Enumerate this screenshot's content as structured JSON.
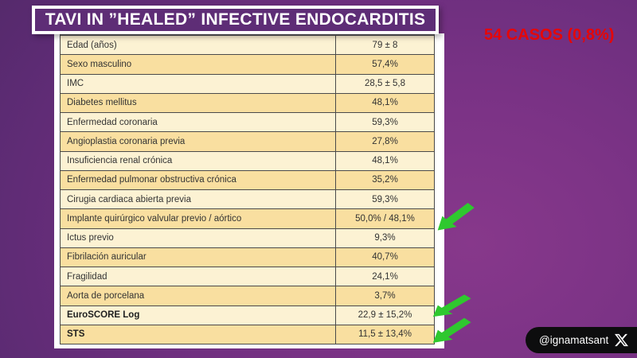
{
  "slide": {
    "title": "TAVI IN ”HEALED” INFECTIVE ENDOCARDITIS",
    "cases_annotation": "54 CASOS (0,8%)",
    "twitter_handle": "@ignamatsant"
  },
  "icons": {
    "x_logo": "x-twitter-logo",
    "green_arrow": "green-arrow-pointer"
  },
  "colors": {
    "background_purple": "#6E2F7F",
    "title_box_fill": "#5E2D76",
    "title_border": "#FFFFFF",
    "annotation_red": "#E60606",
    "row_light": "#FCF2D3",
    "row_dark": "#F9DFA0",
    "table_border": "#4A4A4A",
    "arrow_green": "#2FC82F",
    "badge_black": "#0D0D0E"
  },
  "chart_data": {
    "type": "table",
    "title": "TAVI IN ”HEALED” INFECTIVE ENDOCARDITIS",
    "n_cases": "54 CASOS (0,8%)",
    "rows": [
      {
        "label": "Edad (años)",
        "value": "79 ± 8",
        "bold": false,
        "arrow": false
      },
      {
        "label": "Sexo masculino",
        "value": "57,4%",
        "bold": false,
        "arrow": false
      },
      {
        "label": "IMC",
        "value": "28,5 ± 5,8",
        "bold": false,
        "arrow": false
      },
      {
        "label": "Diabetes mellitus",
        "value": "48,1%",
        "bold": false,
        "arrow": false
      },
      {
        "label": "Enfermedad coronaria",
        "value": "59,3%",
        "bold": false,
        "arrow": false
      },
      {
        "label": "Angioplastia coronaria previa",
        "value": "27,8%",
        "bold": false,
        "arrow": false
      },
      {
        "label": "Insuficiencia renal crónica",
        "value": "48,1%",
        "bold": false,
        "arrow": false
      },
      {
        "label": "Enfermedad pulmonar obstructiva crónica",
        "value": "35,2%",
        "bold": false,
        "arrow": false
      },
      {
        "label": "Cirugia cardiaca abierta previa",
        "value": "59,3%",
        "bold": false,
        "arrow": false
      },
      {
        "label": "Implante quirúrgico valvular previo / aórtico",
        "value": "50,0% / 48,1%",
        "bold": false,
        "arrow": true
      },
      {
        "label": "Ictus previo",
        "value": "9,3%",
        "bold": false,
        "arrow": false
      },
      {
        "label": "Fibrilación auricular",
        "value": "40,7%",
        "bold": false,
        "arrow": false
      },
      {
        "label": "Fragilidad",
        "value": "24,1%",
        "bold": false,
        "arrow": false
      },
      {
        "label": "Aorta de porcelana",
        "value": "3,7%",
        "bold": false,
        "arrow": false
      },
      {
        "label": "EuroSCORE Log",
        "value": "22,9 ± 15,2%",
        "bold": true,
        "arrow": true
      },
      {
        "label": "STS",
        "value": "11,5 ± 13,4%",
        "bold": true,
        "arrow": true
      }
    ]
  }
}
